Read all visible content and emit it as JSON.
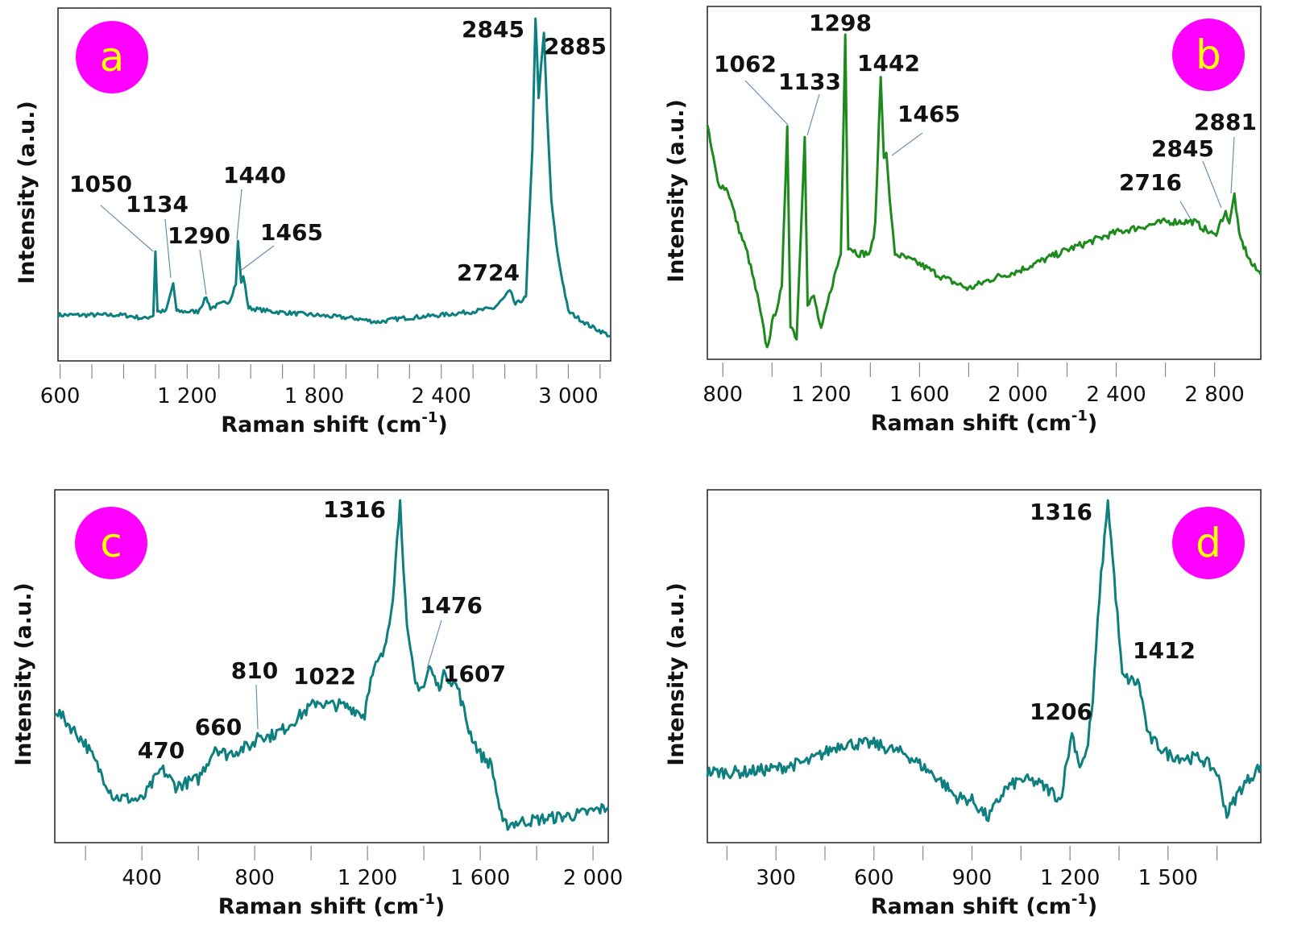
{
  "colors": {
    "teal": "#0e7f7f",
    "green": "#1d8a1d",
    "badge": "#ff00ff",
    "badge_text": "#ffff00"
  },
  "chart_data": [
    {
      "panel": "a",
      "type": "line",
      "color": "teal",
      "xlabel": "Raman shift (cm",
      "xlabel_sup": "-1",
      "xlabel_end": ")",
      "ylabel": "Intensity (a.u.)",
      "xlim": [
        590,
        3200
      ],
      "ylim": [
        0,
        100
      ],
      "tick_step": 150,
      "ticks": [
        {
          "v": 600,
          "label": "600"
        },
        {
          "v": 1200,
          "label": "1 200"
        },
        {
          "v": 1800,
          "label": "1 800"
        },
        {
          "v": 2400,
          "label": "2 400"
        },
        {
          "v": 3000,
          "label": "3 000"
        }
      ],
      "points": [
        [
          590,
          13
        ],
        [
          700,
          13
        ],
        [
          900,
          13
        ],
        [
          1000,
          12
        ],
        [
          1040,
          13
        ],
        [
          1050,
          31
        ],
        [
          1060,
          14
        ],
        [
          1100,
          14
        ],
        [
          1134,
          22
        ],
        [
          1150,
          14
        ],
        [
          1250,
          14
        ],
        [
          1290,
          18
        ],
        [
          1310,
          15
        ],
        [
          1400,
          17
        ],
        [
          1430,
          22
        ],
        [
          1440,
          34
        ],
        [
          1455,
          22
        ],
        [
          1465,
          24
        ],
        [
          1490,
          15
        ],
        [
          1600,
          14
        ],
        [
          1800,
          13
        ],
        [
          2000,
          12
        ],
        [
          2100,
          11
        ],
        [
          2200,
          12
        ],
        [
          2400,
          13
        ],
        [
          2550,
          14
        ],
        [
          2650,
          15
        ],
        [
          2700,
          18
        ],
        [
          2724,
          20
        ],
        [
          2750,
          16
        ],
        [
          2800,
          18
        ],
        [
          2830,
          60
        ],
        [
          2845,
          97
        ],
        [
          2860,
          75
        ],
        [
          2885,
          93
        ],
        [
          2900,
          70
        ],
        [
          2920,
          45
        ],
        [
          2950,
          30
        ],
        [
          3000,
          14
        ],
        [
          3100,
          10
        ],
        [
          3200,
          7
        ]
      ],
      "annotations": [
        "1050",
        "1134",
        "1290",
        "1440",
        "1465",
        "2724",
        "2845",
        "2885"
      ]
    },
    {
      "panel": "b",
      "type": "line",
      "color": "green",
      "xlabel": "Raman shift (cm",
      "xlabel_sup": "-1",
      "xlabel_end": ")",
      "ylabel": "Intensity (a.u.)",
      "xlim": [
        737,
        2988
      ],
      "ylim": [
        0,
        100
      ],
      "tick_step": 200,
      "ticks": [
        {
          "v": 800,
          "label": "800"
        },
        {
          "v": 1200,
          "label": "1 200"
        },
        {
          "v": 1600,
          "label": "1 600"
        },
        {
          "v": 2000,
          "label": "2 000"
        },
        {
          "v": 2400,
          "label": "2 400"
        },
        {
          "v": 2800,
          "label": "2 800"
        }
      ],
      "points": [
        [
          737,
          66
        ],
        [
          780,
          50
        ],
        [
          820,
          48
        ],
        [
          860,
          38
        ],
        [
          900,
          30
        ],
        [
          940,
          18
        ],
        [
          980,
          3
        ],
        [
          1000,
          10
        ],
        [
          1040,
          20
        ],
        [
          1062,
          66
        ],
        [
          1075,
          10
        ],
        [
          1100,
          6
        ],
        [
          1133,
          63
        ],
        [
          1145,
          15
        ],
        [
          1170,
          18
        ],
        [
          1200,
          8
        ],
        [
          1240,
          20
        ],
        [
          1280,
          30
        ],
        [
          1298,
          92
        ],
        [
          1310,
          32
        ],
        [
          1350,
          30
        ],
        [
          1400,
          30
        ],
        [
          1420,
          38
        ],
        [
          1442,
          80
        ],
        [
          1455,
          58
        ],
        [
          1465,
          58
        ],
        [
          1485,
          40
        ],
        [
          1500,
          30
        ],
        [
          1600,
          27
        ],
        [
          1700,
          23
        ],
        [
          1800,
          20
        ],
        [
          1900,
          23
        ],
        [
          2000,
          25
        ],
        [
          2200,
          31
        ],
        [
          2400,
          36
        ],
        [
          2600,
          39
        ],
        [
          2716,
          39
        ],
        [
          2800,
          35
        ],
        [
          2845,
          42
        ],
        [
          2860,
          38
        ],
        [
          2881,
          47
        ],
        [
          2900,
          35
        ],
        [
          2950,
          27
        ],
        [
          2988,
          24
        ]
      ],
      "annotations": [
        "1062",
        "1133",
        "1298",
        "1442",
        "1465",
        "2716",
        "2845",
        "2881"
      ]
    },
    {
      "panel": "c",
      "type": "line",
      "color": "teal",
      "xlabel": "Raman shift (cm",
      "xlabel_sup": "-1",
      "xlabel_end": ")",
      "ylabel": "Intensity (a.u.)",
      "xlim": [
        91,
        2054
      ],
      "ylim": [
        0,
        100
      ],
      "tick_step": 200,
      "ticks": [
        {
          "v": 400,
          "label": "400"
        },
        {
          "v": 800,
          "label": "800"
        },
        {
          "v": 1200,
          "label": "1 200"
        },
        {
          "v": 1600,
          "label": "1 600"
        },
        {
          "v": 2000,
          "label": "2 000"
        }
      ],
      "points": [
        [
          91,
          38
        ],
        [
          200,
          28
        ],
        [
          300,
          13
        ],
        [
          400,
          12
        ],
        [
          470,
          21
        ],
        [
          520,
          16
        ],
        [
          600,
          18
        ],
        [
          660,
          27
        ],
        [
          700,
          25
        ],
        [
          800,
          28
        ],
        [
          810,
          31
        ],
        [
          850,
          30
        ],
        [
          900,
          32
        ],
        [
          960,
          36
        ],
        [
          1022,
          40
        ],
        [
          1060,
          39
        ],
        [
          1100,
          39
        ],
        [
          1150,
          38
        ],
        [
          1190,
          36
        ],
        [
          1200,
          43
        ],
        [
          1230,
          50
        ],
        [
          1260,
          54
        ],
        [
          1290,
          70
        ],
        [
          1316,
          97
        ],
        [
          1340,
          60
        ],
        [
          1370,
          45
        ],
        [
          1400,
          44
        ],
        [
          1420,
          50
        ],
        [
          1450,
          44
        ],
        [
          1476,
          48
        ],
        [
          1520,
          44
        ],
        [
          1560,
          32
        ],
        [
          1600,
          25
        ],
        [
          1640,
          22
        ],
        [
          1680,
          5
        ],
        [
          1750,
          6
        ],
        [
          1850,
          7
        ],
        [
          1950,
          8
        ],
        [
          2054,
          10
        ]
      ],
      "annotations": [
        "470",
        "660",
        "810",
        "1022",
        "1316",
        "1476",
        "1607"
      ]
    },
    {
      "panel": "d",
      "type": "line",
      "color": "teal",
      "xlabel": "Raman shift (cm",
      "xlabel_sup": "-1",
      "xlabel_end": ")",
      "ylabel": "Intensity (a.u.)",
      "xlim": [
        90,
        1784
      ],
      "ylim": [
        0,
        100
      ],
      "tick_step": 150,
      "ticks": [
        {
          "v": 300,
          "label": "300"
        },
        {
          "v": 600,
          "label": "600"
        },
        {
          "v": 900,
          "label": "900"
        },
        {
          "v": 1200,
          "label": "1 200"
        },
        {
          "v": 1500,
          "label": "1 500"
        }
      ],
      "points": [
        [
          90,
          20
        ],
        [
          200,
          20
        ],
        [
          300,
          21
        ],
        [
          400,
          23
        ],
        [
          500,
          28
        ],
        [
          600,
          28
        ],
        [
          700,
          25
        ],
        [
          800,
          18
        ],
        [
          850,
          13
        ],
        [
          900,
          12
        ],
        [
          950,
          7
        ],
        [
          1000,
          15
        ],
        [
          1050,
          18
        ],
        [
          1100,
          17
        ],
        [
          1150,
          14
        ],
        [
          1170,
          12
        ],
        [
          1206,
          31
        ],
        [
          1230,
          22
        ],
        [
          1250,
          25
        ],
        [
          1270,
          40
        ],
        [
          1290,
          70
        ],
        [
          1316,
          97
        ],
        [
          1340,
          70
        ],
        [
          1360,
          47
        ],
        [
          1412,
          45
        ],
        [
          1440,
          30
        ],
        [
          1500,
          25
        ],
        [
          1550,
          24
        ],
        [
          1600,
          24
        ],
        [
          1650,
          20
        ],
        [
          1680,
          8
        ],
        [
          1720,
          15
        ],
        [
          1784,
          22
        ]
      ],
      "annotations": [
        "1316",
        "1412",
        "1206"
      ]
    }
  ]
}
